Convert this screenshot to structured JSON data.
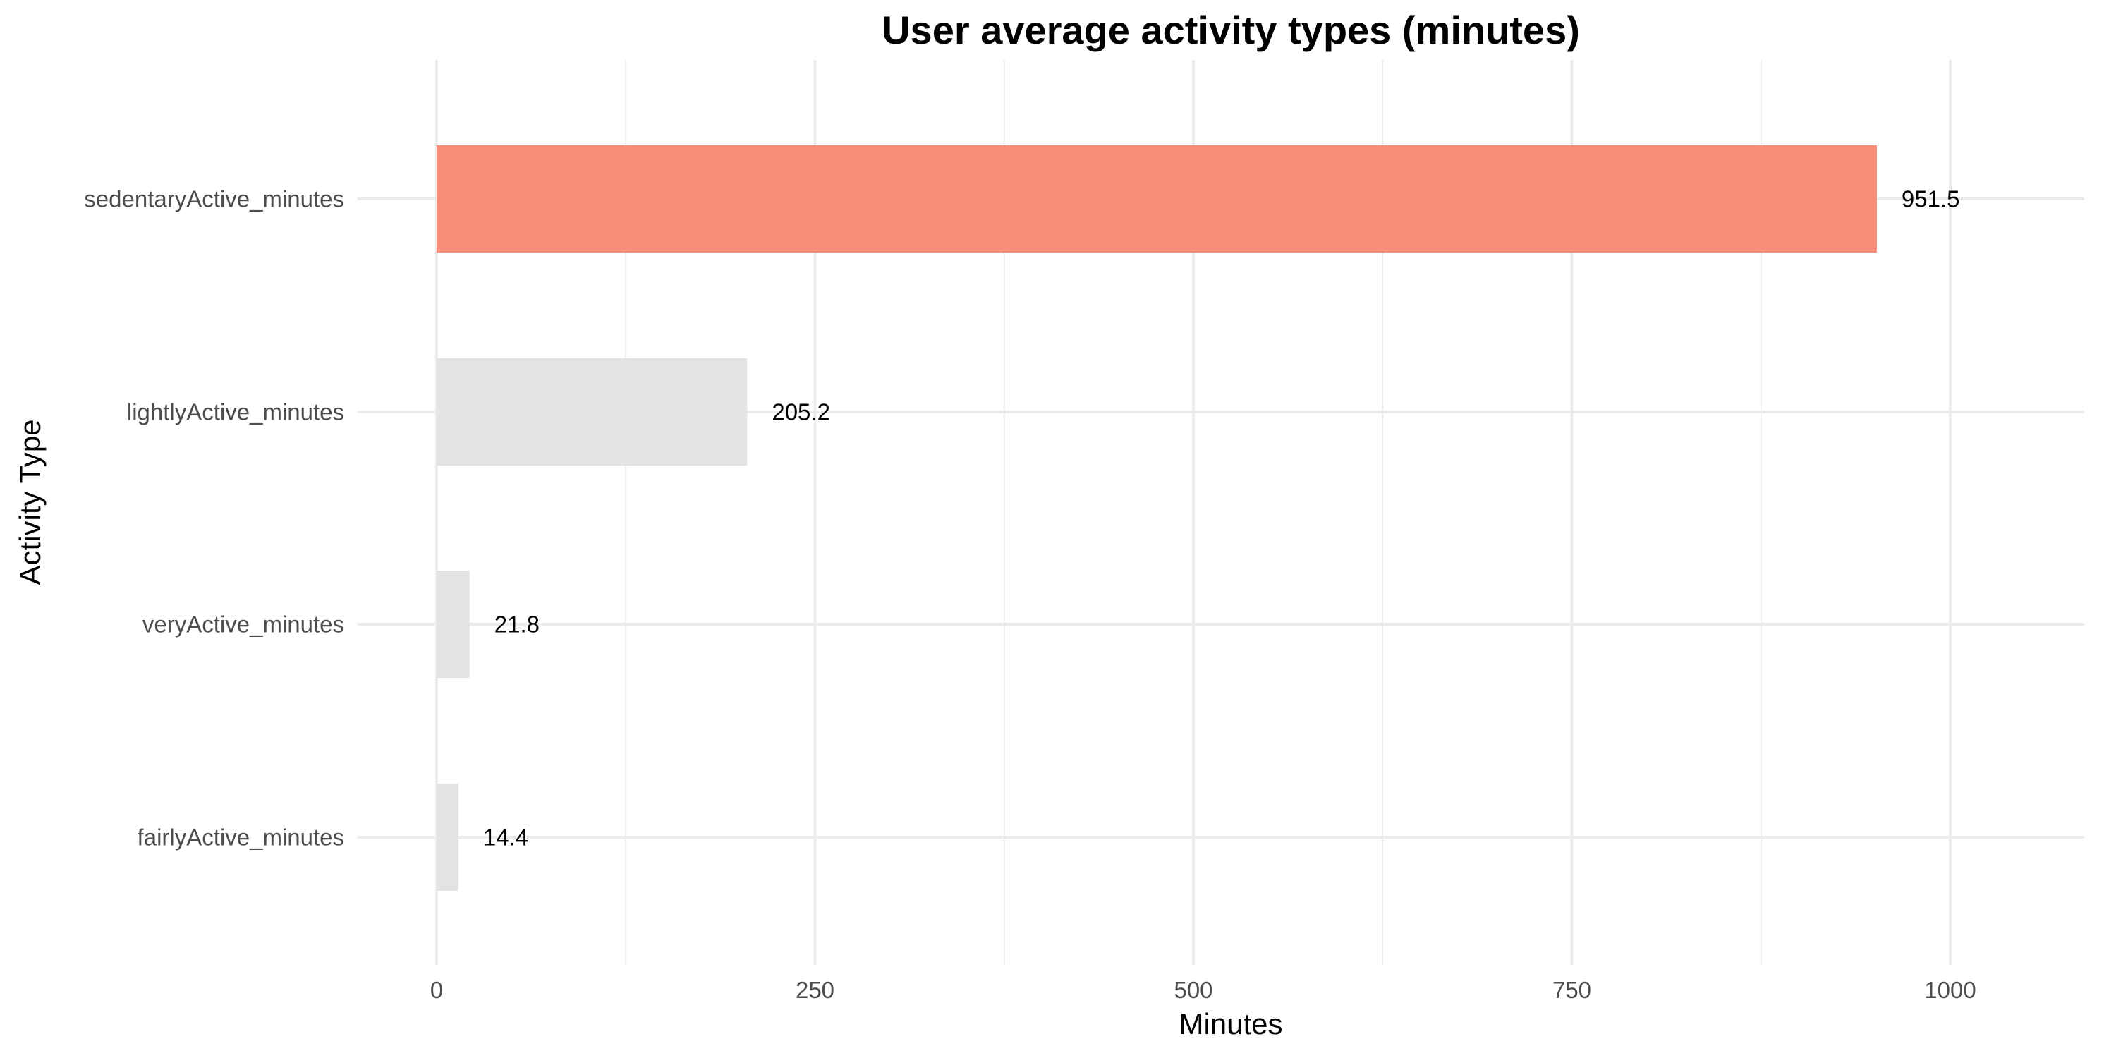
{
  "chart_data": {
    "type": "bar",
    "orientation": "horizontal",
    "title": "User average activity types (minutes)",
    "xlabel": "Minutes",
    "ylabel": "Activity Type",
    "categories": [
      "sedentaryActive_minutes",
      "lightlyActive_minutes",
      "veryActive_minutes",
      "fairlyActive_minutes"
    ],
    "values": [
      951.5,
      205.2,
      21.8,
      14.4
    ],
    "data_labels": [
      "951.5",
      "205.2",
      "21.8",
      "14.4"
    ],
    "highlight": [
      true,
      false,
      false,
      false
    ],
    "xlim": [
      0,
      1100
    ],
    "x_ticks": [
      0,
      250,
      500,
      750,
      1000
    ],
    "x_tick_labels": [
      "0",
      "250",
      "500",
      "750",
      "1000"
    ],
    "x_minor_ticks": [
      125,
      375,
      625,
      875
    ],
    "grid": true,
    "legend": "none",
    "colors": {
      "highlight": "#f68d77",
      "default": "#e4e4e4",
      "grid": "#ebebeb",
      "tick_text": "#4d4d4d",
      "text": "#000000"
    }
  }
}
